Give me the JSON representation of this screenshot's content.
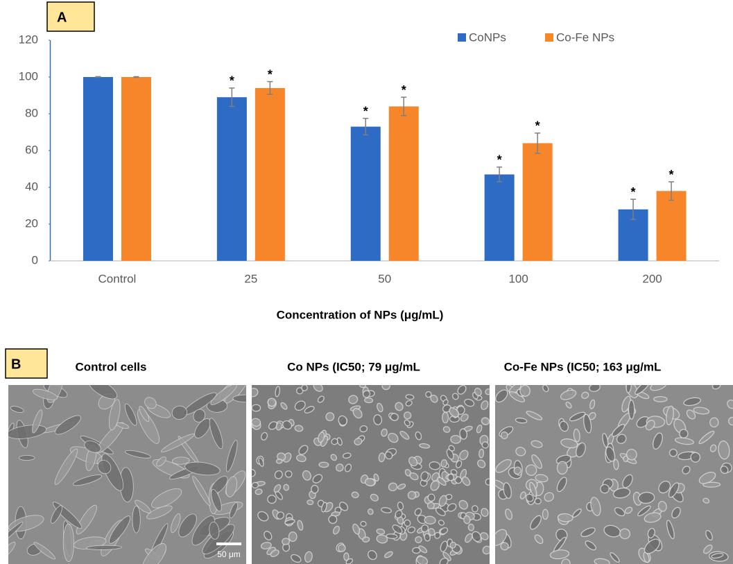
{
  "chart_data": {
    "type": "bar",
    "x_label": "Concentration of NPs (μg/mL)",
    "categories": [
      "Control",
      "25",
      "50",
      "100",
      "200"
    ],
    "series": [
      {
        "name": "CoNPs",
        "color": "#2e6bc4",
        "values": [
          100,
          89,
          73,
          47,
          28
        ],
        "errors": [
          0.2,
          5,
          4.5,
          4,
          5.5
        ],
        "sig_labels": [
          null,
          "*",
          "*",
          "*",
          "*"
        ]
      },
      {
        "name": "Co-Fe NPs",
        "color": "#f7852a",
        "values": [
          100,
          94,
          84,
          64,
          38
        ],
        "errors": [
          0.2,
          3.5,
          5,
          5.5,
          5
        ],
        "sig_labels": [
          null,
          "*",
          "*",
          "*",
          "*"
        ]
      }
    ],
    "ylim": [
      0,
      120
    ],
    "yticks": [
      0,
      20,
      40,
      60,
      80,
      100,
      120
    ],
    "legend": "top-right"
  },
  "panel_labels": [
    "A",
    "B"
  ],
  "micrographs": {
    "titles": [
      "Control cells",
      "Co NPs (IC50; 79 μg/mL",
      "Co-Fe NPs (IC50; 163 μg/mL"
    ],
    "scale_bar": "50 μm"
  }
}
